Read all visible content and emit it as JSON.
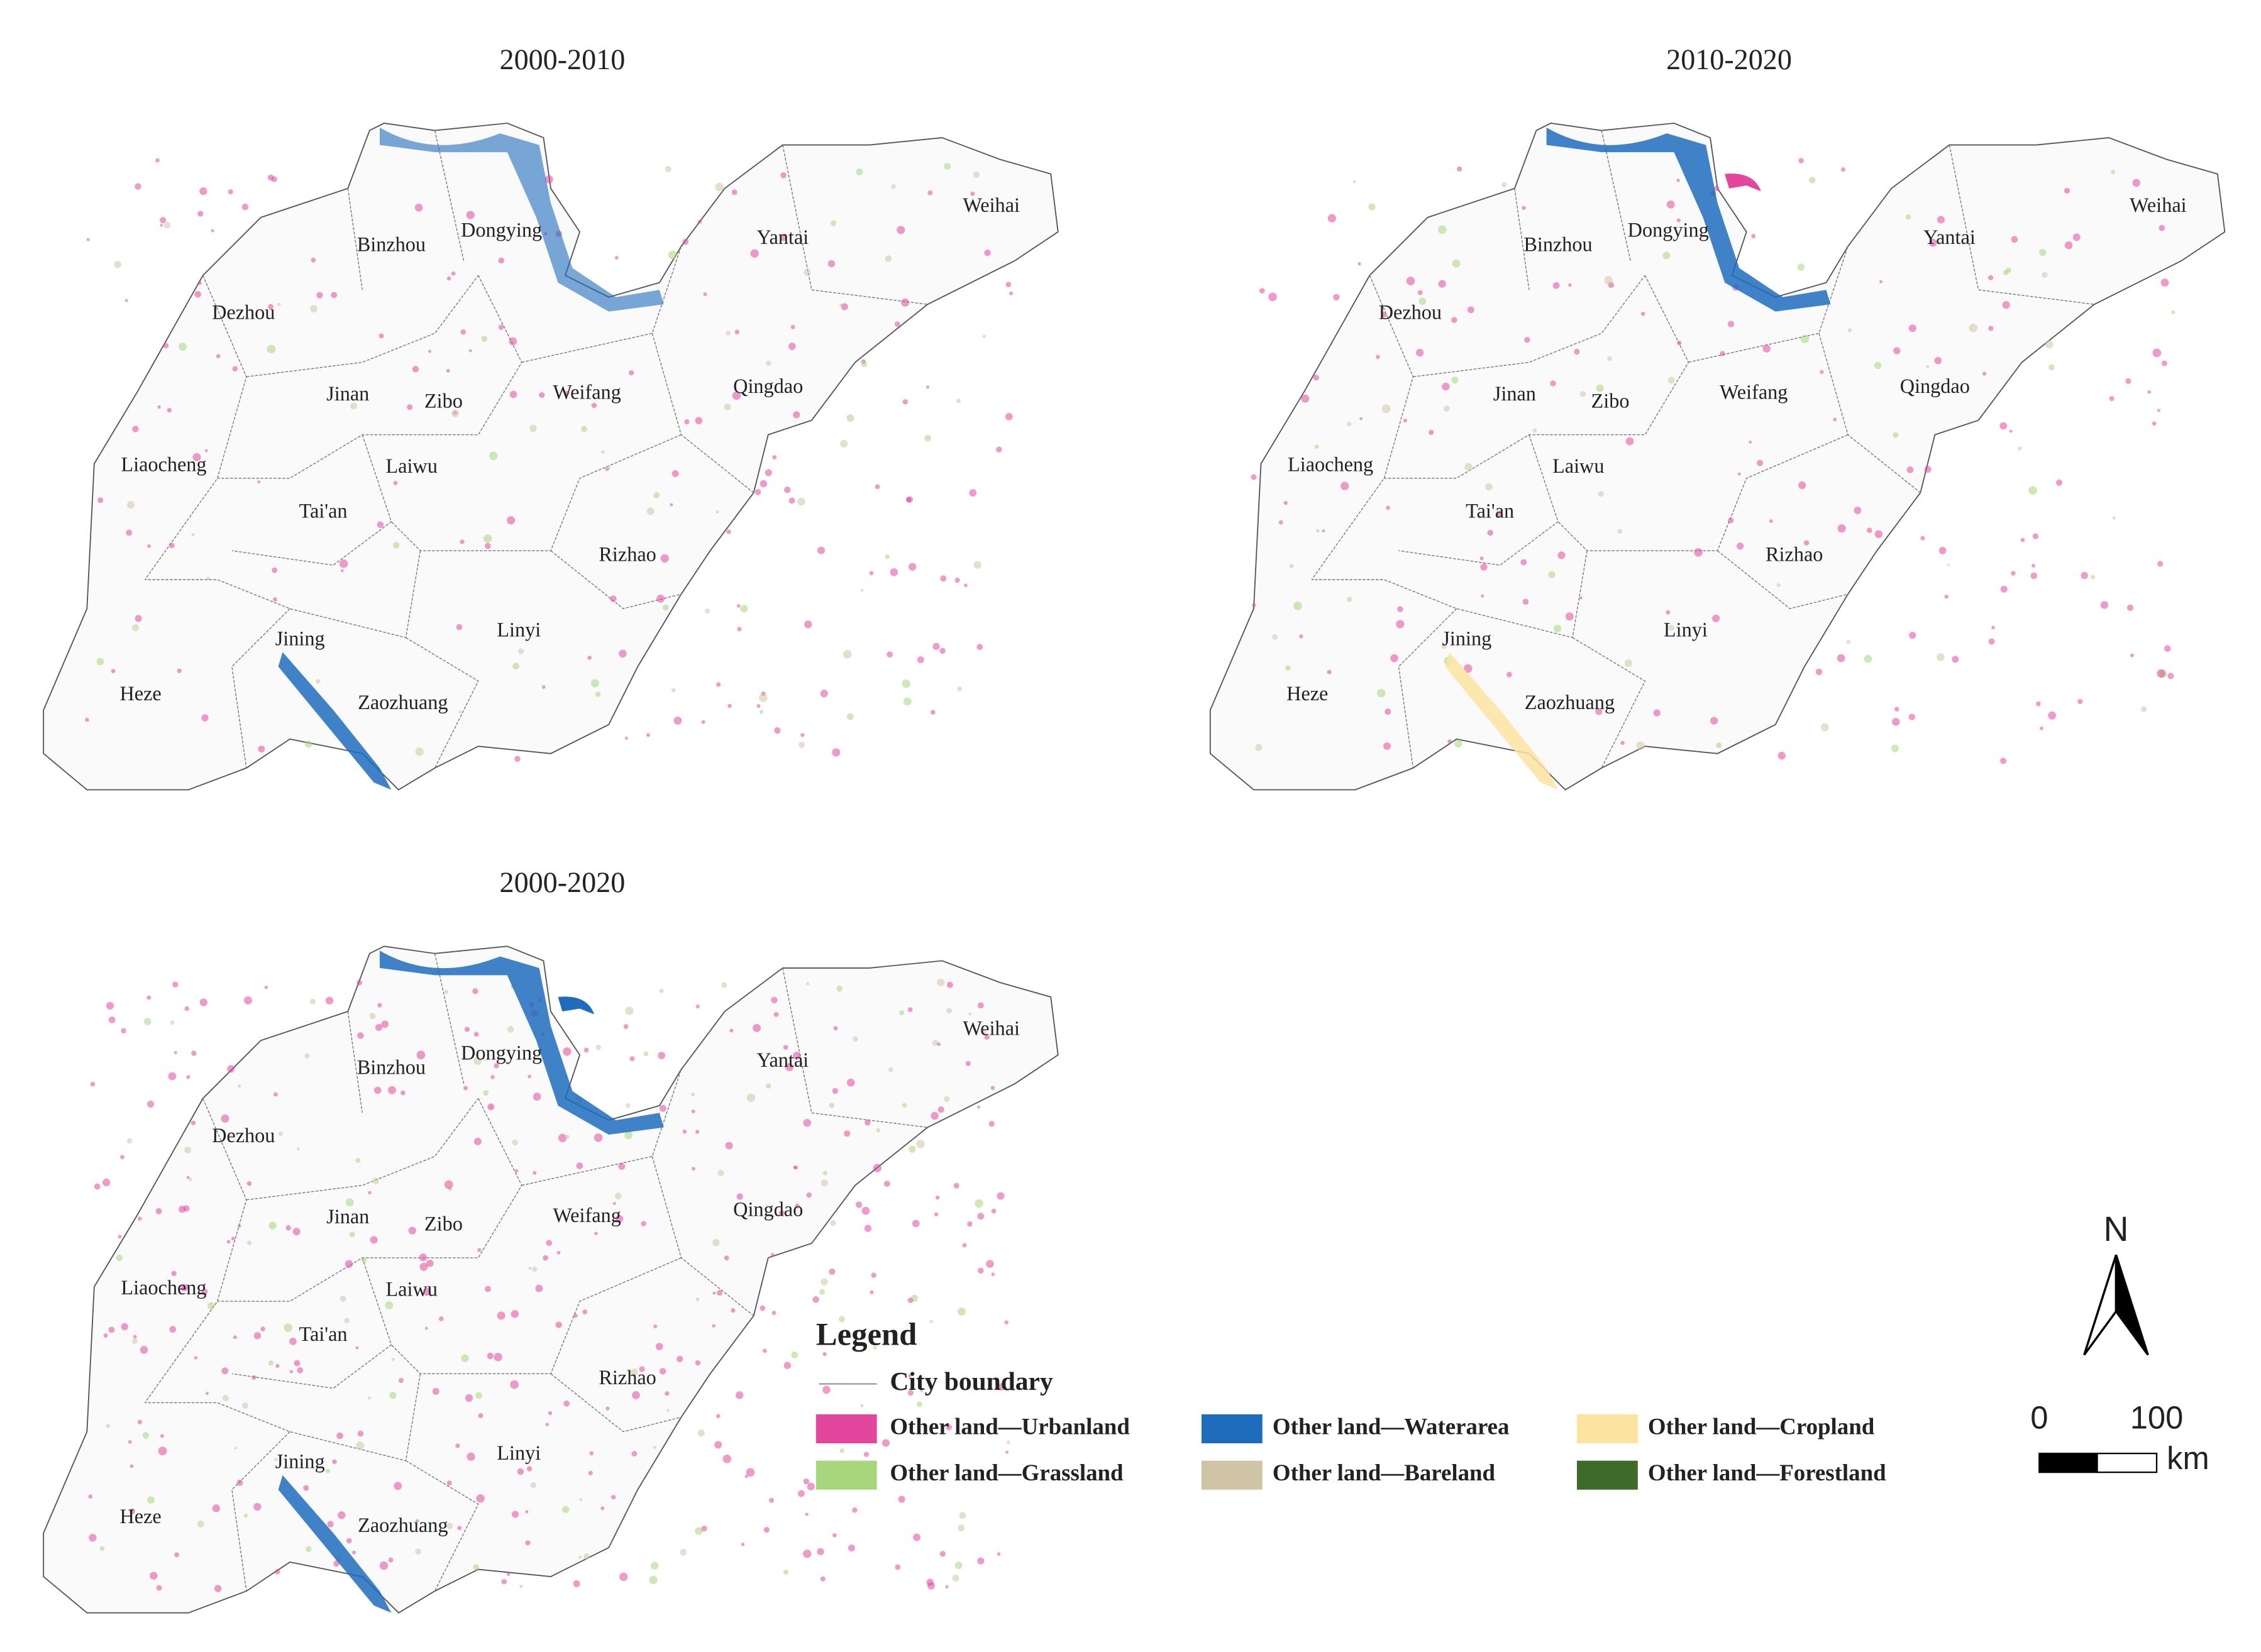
{
  "panels": [
    {
      "title": "2000-2010",
      "cities": [
        "Binzhou",
        "Dongying",
        "Yantai",
        "Weihai",
        "Dezhou",
        "Jinan",
        "Zibo",
        "Weifang",
        "Qingdao",
        "Liaocheng",
        "Laiwu",
        "Tai'an",
        "Rizhao",
        "Jining",
        "Linyi",
        "Heze",
        "Zaozhuang"
      ]
    },
    {
      "title": "2010-2020",
      "cities": [
        "Binzhou",
        "Dongying",
        "Yantai",
        "Weihai",
        "Dezhou",
        "Jinan",
        "Zibo",
        "Weifang",
        "Qingdao",
        "Liaocheng",
        "Laiwu",
        "Tai'an",
        "Rizhao",
        "Jining",
        "Linyi",
        "Heze",
        "Zaozhuang"
      ]
    },
    {
      "title": "2000-2020",
      "cities": [
        "Binzhou",
        "Dongying",
        "Yantai",
        "Weihai",
        "Dezhou",
        "Jinan",
        "Zibo",
        "Weifang",
        "Qingdao",
        "Liaocheng",
        "Laiwu",
        "Tai'an",
        "Rizhao",
        "Jining",
        "Linyi",
        "Heze",
        "Zaozhuang"
      ]
    }
  ],
  "legend": {
    "title": "Legend",
    "boundary": "City boundary",
    "items": [
      {
        "label": "Other land—Urbanland",
        "color": "#e3479d"
      },
      {
        "label": "Other land—Waterarea",
        "color": "#1f6cbd"
      },
      {
        "label": "Other land—Cropland",
        "color": "#fce4a0"
      },
      {
        "label": "Other land—Grassland",
        "color": "#a8d67c"
      },
      {
        "label": "Other land—Bareland",
        "color": "#cfc4a4"
      },
      {
        "label": "Other land—Forestland",
        "color": "#3e6b2a"
      }
    ]
  },
  "north": "N",
  "scale_bar": {
    "labels": [
      "0",
      "100"
    ],
    "unit": "km"
  }
}
